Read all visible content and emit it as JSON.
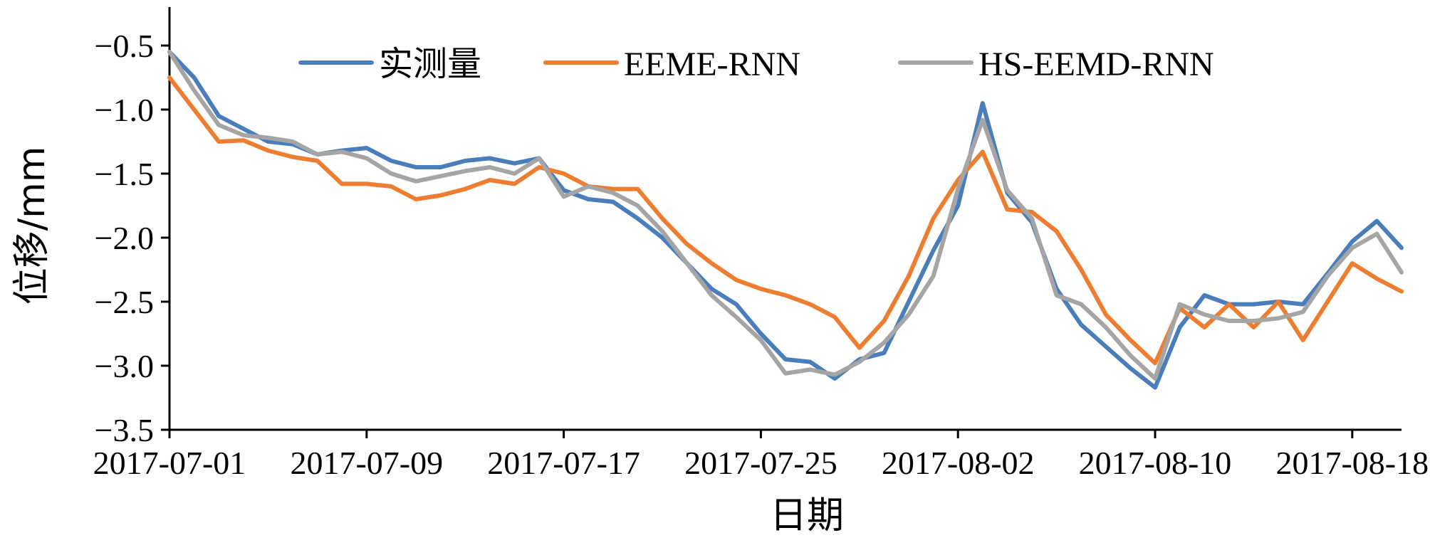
{
  "chart_data": {
    "type": "line",
    "xlabel": "日期",
    "ylabel": "位移/mm",
    "x_ticks": [
      "2017-07-01",
      "2017-07-09",
      "2017-07-17",
      "2017-07-25",
      "2017-08-02",
      "2017-08-10",
      "2017-08-18"
    ],
    "x_start": "2017-07-01",
    "x_end": "2017-08-20",
    "y_ticks": [
      "−0.5",
      "−1.0",
      "−1.5",
      "−2.0",
      "−2.5",
      "−3.0",
      "−3.5"
    ],
    "ylim": [
      -3.5,
      -0.2
    ],
    "grid": false,
    "legend_position": "top",
    "series": [
      {
        "name": "实测量",
        "color": "#4a7ebb",
        "values": [
          -0.55,
          -0.75,
          -1.05,
          -1.15,
          -1.25,
          -1.27,
          -1.35,
          -1.32,
          -1.3,
          -1.4,
          -1.45,
          -1.45,
          -1.4,
          -1.38,
          -1.42,
          -1.38,
          -1.63,
          -1.7,
          -1.72,
          -1.85,
          -2.0,
          -2.2,
          -2.4,
          -2.52,
          -2.75,
          -2.95,
          -2.97,
          -3.1,
          -2.95,
          -2.9,
          -2.5,
          -2.1,
          -1.75,
          -0.95,
          -1.65,
          -1.88,
          -2.4,
          -2.68,
          -2.85,
          -3.02,
          -3.17,
          -2.7,
          -2.45,
          -2.52,
          -2.52,
          -2.5,
          -2.52,
          -2.28,
          -2.03,
          -1.87,
          -2.08
        ]
      },
      {
        "name": "EEME-RNN",
        "color": "#ed7d31",
        "values": [
          -0.75,
          -1.0,
          -1.25,
          -1.24,
          -1.32,
          -1.37,
          -1.4,
          -1.58,
          -1.58,
          -1.6,
          -1.7,
          -1.67,
          -1.62,
          -1.55,
          -1.58,
          -1.45,
          -1.5,
          -1.6,
          -1.62,
          -1.62,
          -1.85,
          -2.05,
          -2.2,
          -2.33,
          -2.4,
          -2.45,
          -2.52,
          -2.62,
          -2.86,
          -2.65,
          -2.3,
          -1.85,
          -1.55,
          -1.33,
          -1.78,
          -1.8,
          -1.95,
          -2.25,
          -2.6,
          -2.8,
          -2.98,
          -2.55,
          -2.7,
          -2.52,
          -2.7,
          -2.5,
          -2.8,
          -2.5,
          -2.2,
          -2.32,
          -2.42
        ]
      },
      {
        "name": "HS-EEMD-RNN",
        "color": "#a5a5a5",
        "values": [
          -0.55,
          -0.85,
          -1.12,
          -1.2,
          -1.22,
          -1.25,
          -1.35,
          -1.33,
          -1.38,
          -1.5,
          -1.56,
          -1.52,
          -1.48,
          -1.45,
          -1.5,
          -1.38,
          -1.68,
          -1.6,
          -1.65,
          -1.75,
          -1.95,
          -2.2,
          -2.45,
          -2.62,
          -2.8,
          -3.06,
          -3.03,
          -3.07,
          -2.97,
          -2.82,
          -2.6,
          -2.3,
          -1.62,
          -1.08,
          -1.63,
          -1.85,
          -2.45,
          -2.52,
          -2.7,
          -2.92,
          -3.1,
          -2.52,
          -2.6,
          -2.65,
          -2.65,
          -2.63,
          -2.58,
          -2.3,
          -2.08,
          -1.97,
          -2.27
        ]
      }
    ]
  }
}
